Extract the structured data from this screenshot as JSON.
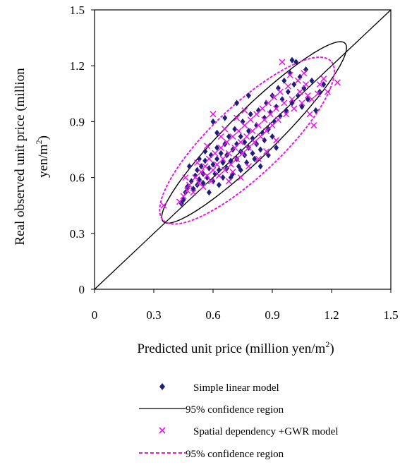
{
  "chart_data": {
    "type": "scatter",
    "xlabel": {
      "main": "Predicted unit price (million yen/m",
      "sup": "2",
      "close": ")"
    },
    "ylabel": {
      "line1": "Real observed unit price (million",
      "line2_main": "yen/m",
      "line2_sup": "2",
      "line2_close": ")"
    },
    "xlim": [
      0,
      1.5
    ],
    "ylim": [
      0,
      1.5
    ],
    "x_ticks": [
      "0",
      "0.3",
      "0.6",
      "0.9",
      "1.2",
      "1.5"
    ],
    "y_ticks": [
      "0",
      "0.3",
      "0.6",
      "0.9",
      "1.2",
      "1.5"
    ],
    "reference_line": {
      "from": [
        0,
        0
      ],
      "to": [
        1.5,
        1.5
      ]
    },
    "legend_placement": "bottom",
    "series": [
      {
        "name": "Simple linear model",
        "marker": "diamond",
        "color": "#1f1f7a",
        "points": [
          [
            0.44,
            0.46
          ],
          [
            0.45,
            0.48
          ],
          [
            0.46,
            0.52
          ],
          [
            0.47,
            0.55
          ],
          [
            0.49,
            0.58
          ],
          [
            0.5,
            0.54
          ],
          [
            0.51,
            0.61
          ],
          [
            0.52,
            0.56
          ],
          [
            0.52,
            0.64
          ],
          [
            0.53,
            0.59
          ],
          [
            0.54,
            0.66
          ],
          [
            0.55,
            0.57
          ],
          [
            0.55,
            0.62
          ],
          [
            0.56,
            0.69
          ],
          [
            0.57,
            0.6
          ],
          [
            0.58,
            0.65
          ],
          [
            0.59,
            0.72
          ],
          [
            0.6,
            0.58
          ],
          [
            0.6,
            0.67
          ],
          [
            0.61,
            0.62
          ],
          [
            0.62,
            0.7
          ],
          [
            0.62,
            0.76
          ],
          [
            0.63,
            0.64
          ],
          [
            0.64,
            0.73
          ],
          [
            0.65,
            0.6
          ],
          [
            0.65,
            0.68
          ],
          [
            0.66,
            0.78
          ],
          [
            0.67,
            0.65
          ],
          [
            0.67,
            0.72
          ],
          [
            0.68,
            0.82
          ],
          [
            0.69,
            0.69
          ],
          [
            0.7,
            0.62
          ],
          [
            0.7,
            0.75
          ],
          [
            0.71,
            0.86
          ],
          [
            0.72,
            0.7
          ],
          [
            0.72,
            0.78
          ],
          [
            0.73,
            0.66
          ],
          [
            0.74,
            0.74
          ],
          [
            0.74,
            0.82
          ],
          [
            0.75,
            0.9
          ],
          [
            0.76,
            0.72
          ],
          [
            0.76,
            0.79
          ],
          [
            0.77,
            0.68
          ],
          [
            0.78,
            0.76
          ],
          [
            0.78,
            0.85
          ],
          [
            0.79,
            0.94
          ],
          [
            0.8,
            0.73
          ],
          [
            0.8,
            0.81
          ],
          [
            0.81,
            0.7
          ],
          [
            0.82,
            0.78
          ],
          [
            0.82,
            0.88
          ],
          [
            0.83,
            0.96
          ],
          [
            0.84,
            0.75
          ],
          [
            0.85,
            0.84
          ],
          [
            0.86,
            0.92
          ],
          [
            0.86,
            0.8
          ],
          [
            0.87,
            1.0
          ],
          [
            0.88,
            0.86
          ],
          [
            0.89,
            0.95
          ],
          [
            0.9,
            0.82
          ],
          [
            0.9,
            1.04
          ],
          [
            0.91,
            0.9
          ],
          [
            0.92,
            0.98
          ],
          [
            0.93,
            1.08
          ],
          [
            0.94,
            0.93
          ],
          [
            0.95,
            1.02
          ],
          [
            0.96,
            1.12
          ],
          [
            0.97,
            0.96
          ],
          [
            0.98,
            1.06
          ],
          [
            0.99,
            1.16
          ],
          [
            1.0,
            1.23
          ],
          [
            1.0,
            1.0
          ],
          [
            1.01,
            1.1
          ],
          [
            1.02,
            1.22
          ],
          [
            1.03,
            1.04
          ],
          [
            1.04,
            1.14
          ],
          [
            1.05,
            0.98
          ],
          [
            1.06,
            1.08
          ],
          [
            1.07,
            1.18
          ],
          [
            1.08,
            1.02
          ],
          [
            1.1,
            1.12
          ],
          [
            1.12,
            0.96
          ],
          [
            1.14,
            1.06
          ],
          [
            1.16,
            1.1
          ],
          [
            0.58,
            0.52
          ],
          [
            0.63,
            0.56
          ],
          [
            0.69,
            0.6
          ],
          [
            0.74,
            0.64
          ],
          [
            0.66,
            0.92
          ],
          [
            0.6,
            0.9
          ],
          [
            0.72,
            1.0
          ],
          [
            0.78,
            1.04
          ],
          [
            0.84,
            0.66
          ],
          [
            0.88,
            0.72
          ],
          [
            0.92,
            0.76
          ],
          [
            0.48,
            0.66
          ],
          [
            0.53,
            0.7
          ],
          [
            0.56,
            0.74
          ],
          [
            0.62,
            0.84
          ]
        ]
      },
      {
        "name": "Spatial dependency +GWR model",
        "marker": "x",
        "color": "#e815e8",
        "points": [
          [
            0.35,
            0.45
          ],
          [
            0.43,
            0.47
          ],
          [
            0.45,
            0.5
          ],
          [
            0.47,
            0.53
          ],
          [
            0.48,
            0.56
          ],
          [
            0.5,
            0.52
          ],
          [
            0.51,
            0.6
          ],
          [
            0.53,
            0.57
          ],
          [
            0.54,
            0.63
          ],
          [
            0.55,
            0.55
          ],
          [
            0.56,
            0.66
          ],
          [
            0.57,
            0.61
          ],
          [
            0.58,
            0.7
          ],
          [
            0.59,
            0.58
          ],
          [
            0.6,
            0.64
          ],
          [
            0.61,
            0.73
          ],
          [
            0.62,
            0.67
          ],
          [
            0.63,
            0.61
          ],
          [
            0.64,
            0.76
          ],
          [
            0.65,
            0.7
          ],
          [
            0.66,
            0.64
          ],
          [
            0.67,
            0.79
          ],
          [
            0.68,
            0.73
          ],
          [
            0.69,
            0.67
          ],
          [
            0.7,
            0.82
          ],
          [
            0.71,
            0.76
          ],
          [
            0.72,
            0.7
          ],
          [
            0.73,
            0.85
          ],
          [
            0.74,
            0.79
          ],
          [
            0.75,
            0.73
          ],
          [
            0.76,
            0.88
          ],
          [
            0.77,
            0.82
          ],
          [
            0.78,
            0.76
          ],
          [
            0.79,
            0.91
          ],
          [
            0.8,
            0.85
          ],
          [
            0.81,
            0.79
          ],
          [
            0.82,
            0.94
          ],
          [
            0.83,
            0.88
          ],
          [
            0.84,
            0.82
          ],
          [
            0.85,
            0.97
          ],
          [
            0.86,
            0.91
          ],
          [
            0.87,
            0.85
          ],
          [
            0.88,
            1.0
          ],
          [
            0.89,
            0.94
          ],
          [
            0.9,
            0.88
          ],
          [
            0.91,
            1.03
          ],
          [
            0.92,
            0.97
          ],
          [
            0.93,
            0.91
          ],
          [
            0.94,
            1.06
          ],
          [
            0.95,
            1.22
          ],
          [
            0.96,
            1.0
          ],
          [
            0.97,
            0.94
          ],
          [
            0.98,
            1.09
          ],
          [
            0.99,
            1.15
          ],
          [
            1.0,
            1.02
          ],
          [
            1.01,
            0.97
          ],
          [
            1.03,
            1.12
          ],
          [
            1.04,
            1.06
          ],
          [
            1.05,
            1.0
          ],
          [
            1.06,
            1.16
          ],
          [
            1.07,
            1.1
          ],
          [
            1.08,
            1.04
          ],
          [
            1.09,
            0.94
          ],
          [
            1.1,
            1.02
          ],
          [
            1.11,
            0.88
          ],
          [
            1.13,
            1.05
          ],
          [
            1.14,
            1.1
          ],
          [
            1.16,
            1.13
          ],
          [
            1.18,
            1.06
          ],
          [
            1.23,
            1.11
          ],
          [
            0.6,
            0.94
          ],
          [
            0.66,
            0.86
          ],
          [
            0.72,
            0.92
          ],
          [
            0.76,
            0.96
          ],
          [
            0.7,
            0.63
          ],
          [
            0.74,
            0.6
          ],
          [
            0.78,
            0.66
          ],
          [
            0.52,
            0.68
          ],
          [
            0.57,
            0.77
          ],
          [
            0.64,
            0.82
          ],
          [
            0.83,
            0.7
          ],
          [
            0.87,
            0.74
          ],
          [
            0.92,
            0.8
          ],
          [
            0.46,
            0.6
          ],
          [
            0.68,
            0.58
          ]
        ]
      }
    ],
    "ellipses": [
      {
        "name": "95% confidence region",
        "model": "Simple linear model",
        "style": "solid",
        "color": "#000000",
        "center": [
          0.808,
          0.842
        ],
        "axis_a": [
          0.459,
          0.48
        ],
        "axis_b": [
          -0.09,
          0.083
        ]
      },
      {
        "name": "95% confidence region",
        "model": "Spatial dependency +GWR model",
        "style": "dashed",
        "color": "#e815e8",
        "center": [
          0.772,
          0.798
        ],
        "axis_a": [
          0.424,
          0.428
        ],
        "axis_b": [
          -0.126,
          0.132
        ]
      }
    ],
    "legend": [
      {
        "label": "Simple linear model",
        "symbol": "diamond"
      },
      {
        "label": "95% confidence region",
        "symbol": "solid-line"
      },
      {
        "label": "Spatial dependency +GWR model",
        "symbol": "x"
      },
      {
        "label": "95% confidence region",
        "symbol": "dashed-line"
      }
    ]
  }
}
